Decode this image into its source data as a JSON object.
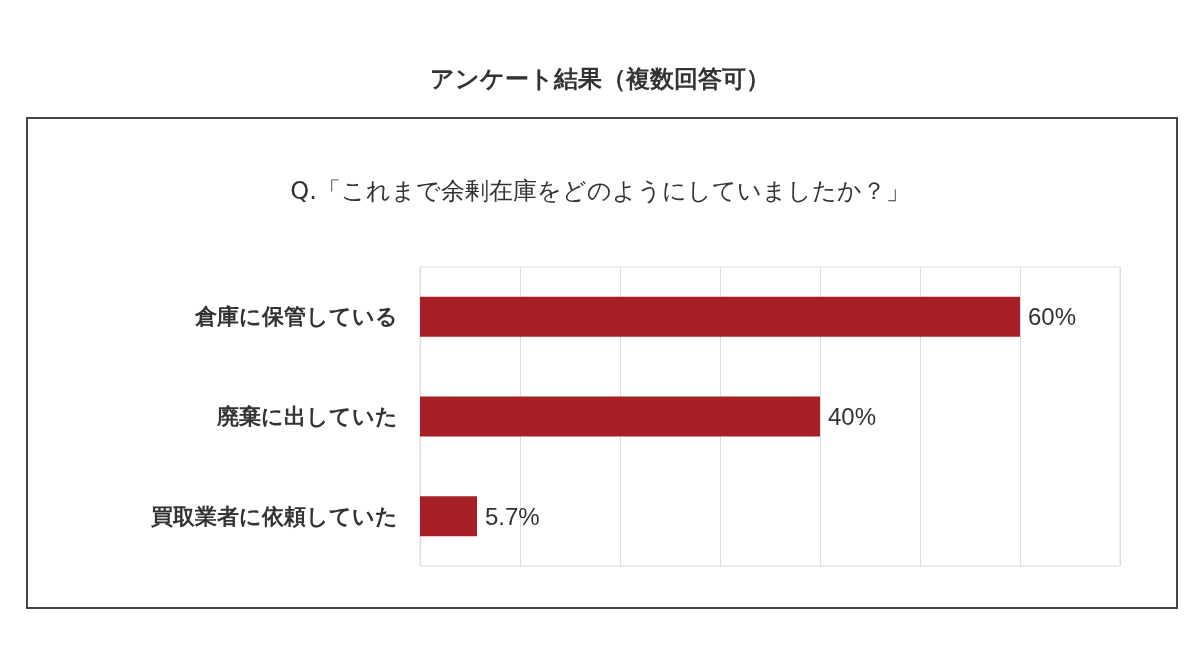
{
  "chart_data": {
    "type": "bar",
    "orientation": "horizontal",
    "title": "アンケート結果（複数回答可）",
    "subtitle": "Q.「これまで余剰在庫をどのようにしていましたか？」",
    "categories": [
      "倉庫に保管している",
      "廃棄に出していた",
      "買取業者に依頼していた"
    ],
    "values": [
      60,
      40,
      5.7
    ],
    "color": "#a51f24",
    "value_labels": [
      "60%",
      "40%",
      "5.7%"
    ],
    "xlim": [
      0,
      70
    ],
    "xticks": [
      {
        "value": 0,
        "label": null
      },
      {
        "value": 10,
        "label": null
      },
      {
        "value": 20,
        "label": null
      },
      {
        "value": 30,
        "label": null
      },
      {
        "value": 40,
        "label": null
      },
      {
        "value": 50,
        "label": null
      },
      {
        "value": 60,
        "label": null
      },
      {
        "value": 70,
        "label": null
      }
    ],
    "grid": "x",
    "tick_labels": "y"
  }
}
